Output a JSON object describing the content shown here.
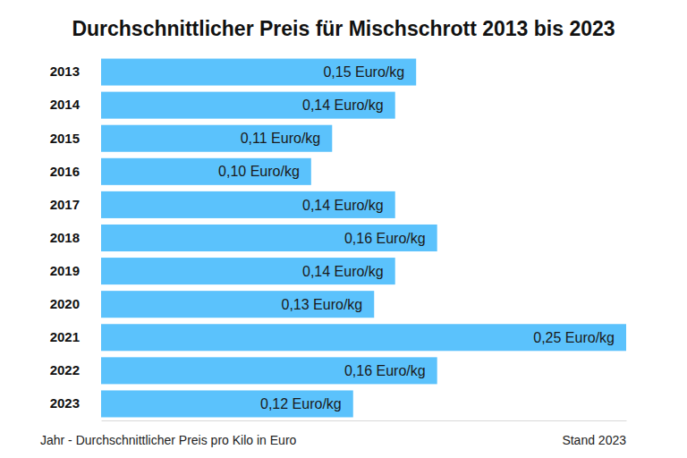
{
  "chart_data": {
    "type": "bar",
    "orientation": "horizontal",
    "title": "Durchschnittlicher Preis für Mischschrott 2013 bis 2023",
    "categories": [
      "2013",
      "2014",
      "2015",
      "2016",
      "2017",
      "2018",
      "2019",
      "2020",
      "2021",
      "2022",
      "2023"
    ],
    "values": [
      0.15,
      0.14,
      0.11,
      0.1,
      0.14,
      0.16,
      0.14,
      0.13,
      0.25,
      0.16,
      0.12
    ],
    "value_labels": [
      "0,15 Euro/kg",
      "0,14 Euro/kg",
      "0,11 Euro/kg",
      "0,10 Euro/kg",
      "0,14 Euro/kg",
      "0,16 Euro/kg",
      "0,14 Euro/kg",
      "0,13 Euro/kg",
      "0,25 Euro/kg",
      "0,16 Euro/kg",
      "0,12 Euro/kg"
    ],
    "data_labels": true,
    "color": "#5bc2fc",
    "xlim": [
      0,
      0.25
    ],
    "tick_labels": "y",
    "annotations": [
      "Jahr - Durchschnittlicher Preis pro Kilo in Euro",
      "Stand 2023"
    ]
  }
}
